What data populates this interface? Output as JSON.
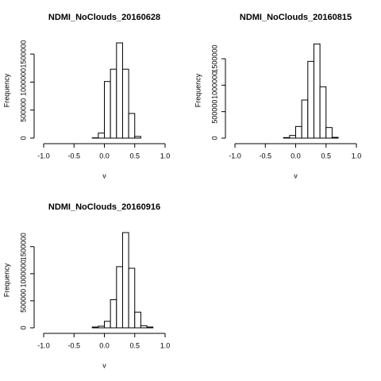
{
  "chart_data": [
    {
      "type": "histogram",
      "title": "NDMI_NoClouds_20160628",
      "xlabel": "v",
      "ylabel": "Frequency",
      "bins": [
        -1,
        -0.9,
        -0.8,
        -0.7,
        -0.6,
        -0.5,
        -0.4,
        -0.3,
        -0.2,
        -0.1,
        0,
        0.1,
        0.2,
        0.3,
        0.4,
        0.5,
        0.6,
        0.7,
        0.8,
        0.9,
        1
      ],
      "counts": [
        0,
        0,
        0,
        0,
        0,
        0,
        0,
        0,
        5000,
        90000,
        1010000,
        1230000,
        1700000,
        1230000,
        440000,
        30000,
        0,
        0,
        0,
        0
      ],
      "xlim": [
        -1,
        1
      ],
      "xticks": [
        {
          "value": -1,
          "label": "-1.0"
        },
        -0.5,
        {
          "value": 0,
          "label": "0.0"
        },
        0.5,
        {
          "value": 1,
          "label": "1.0"
        }
      ],
      "ylim": [
        0,
        1700000
      ],
      "yticks": [
        0,
        500000,
        1000000,
        1500000
      ],
      "color": "#ffffff"
    },
    {
      "type": "histogram",
      "title": "NDMI_NoClouds_20160815",
      "xlabel": "v",
      "ylabel": "Frequency",
      "bins": [
        -1,
        -0.9,
        -0.8,
        -0.7,
        -0.6,
        -0.5,
        -0.4,
        -0.3,
        -0.2,
        -0.1,
        0,
        0.1,
        0.2,
        0.3,
        0.4,
        0.5,
        0.6,
        0.7,
        0.8,
        0.9,
        1
      ],
      "counts": [
        0,
        0,
        0,
        0,
        0,
        0,
        0,
        0,
        10000,
        50000,
        220000,
        720000,
        1450000,
        1780000,
        970000,
        200000,
        15000,
        0,
        0,
        0
      ],
      "xlim": [
        -1,
        1
      ],
      "xticks": [
        {
          "value": -1,
          "label": "-1.0"
        },
        -0.5,
        {
          "value": 0,
          "label": "0.0"
        },
        0.5,
        {
          "value": 1,
          "label": "1.0"
        }
      ],
      "ylim": [
        0,
        1800000
      ],
      "yticks": [
        0,
        500000,
        1000000,
        1500000
      ],
      "color": "#ffffff"
    },
    {
      "type": "histogram",
      "title": "NDMI_NoClouds_20160916",
      "xlabel": "v",
      "ylabel": "Frequency",
      "bins": [
        -1,
        -0.9,
        -0.8,
        -0.7,
        -0.6,
        -0.5,
        -0.4,
        -0.3,
        -0.2,
        -0.1,
        0,
        0.1,
        0.2,
        0.3,
        0.4,
        0.5,
        0.6,
        0.7,
        0.8,
        0.9,
        1
      ],
      "counts": [
        0,
        0,
        0,
        0,
        0,
        0,
        0,
        0,
        15000,
        30000,
        120000,
        520000,
        1130000,
        1760000,
        1100000,
        290000,
        40000,
        15000,
        0,
        0
      ],
      "xlim": [
        -1,
        1
      ],
      "xticks": [
        {
          "value": -1,
          "label": "-1.0"
        },
        -0.5,
        {
          "value": 0,
          "label": "0.0"
        },
        0.5,
        {
          "value": 1,
          "label": "1.0"
        }
      ],
      "ylim": [
        0,
        1760000
      ],
      "yticks": [
        0,
        500000,
        1000000,
        1500000
      ],
      "color": "#ffffff"
    }
  ]
}
